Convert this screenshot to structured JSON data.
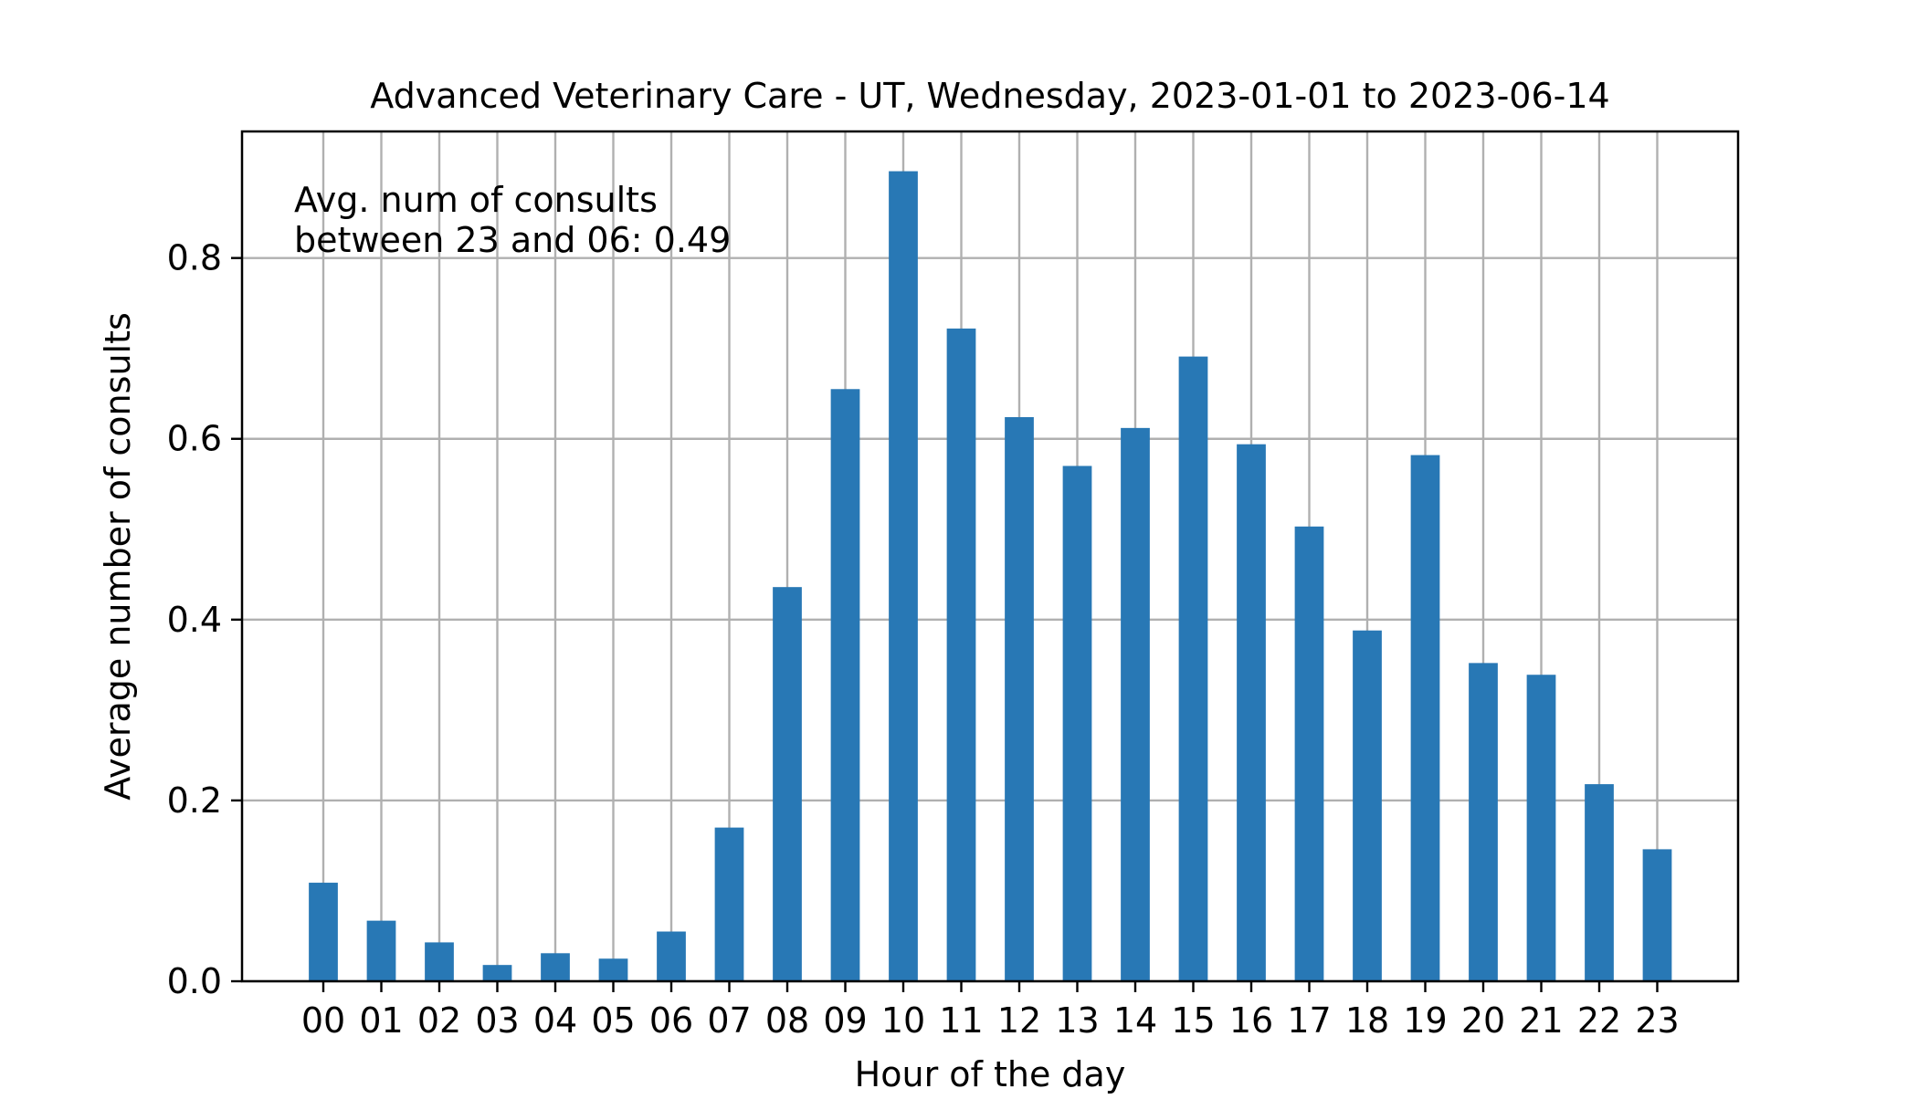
{
  "chart_data": {
    "type": "bar",
    "title": "Advanced Veterinary Care - UT, Wednesday, 2023-01-01 to 2023-06-14",
    "xlabel": "Hour of the day",
    "ylabel": "Average number of consults",
    "annotation": [
      "Avg. num of consults",
      "between 23 and 06: 0.49"
    ],
    "categories": [
      "00",
      "01",
      "02",
      "03",
      "04",
      "05",
      "06",
      "07",
      "08",
      "09",
      "10",
      "11",
      "12",
      "13",
      "14",
      "15",
      "16",
      "17",
      "18",
      "19",
      "20",
      "21",
      "22",
      "23"
    ],
    "values": [
      0.109,
      0.067,
      0.043,
      0.018,
      0.031,
      0.025,
      0.055,
      0.17,
      0.436,
      0.655,
      0.896,
      0.722,
      0.624,
      0.57,
      0.612,
      0.691,
      0.594,
      0.503,
      0.388,
      0.582,
      0.352,
      0.339,
      0.218,
      0.146
    ],
    "yticks": [
      "0.0",
      "0.2",
      "0.4",
      "0.6",
      "0.8"
    ],
    "ylim": [
      0,
      0.94
    ],
    "grid": true,
    "bar_color": "#2878b5"
  }
}
